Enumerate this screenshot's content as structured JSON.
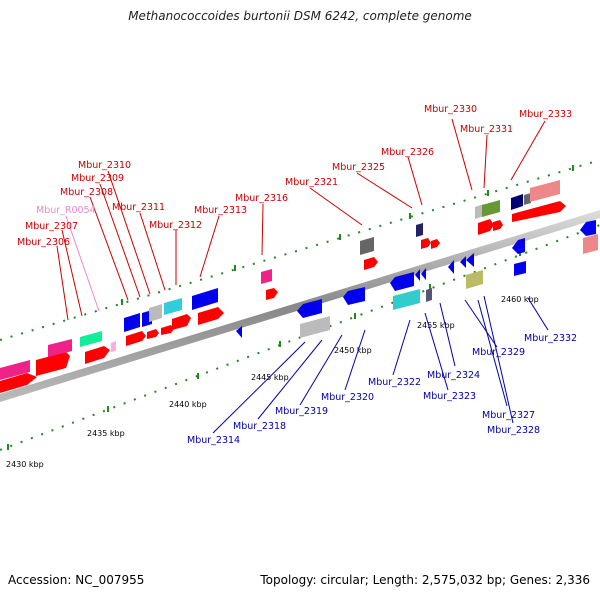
{
  "title": "Methanococcoides burtonii DSM 6242, complete genome",
  "footer": {
    "accession": "Accession: NC_007955",
    "summary": "Topology: circular; Length: 2,575,032 bp; Genes: 2,336"
  },
  "colors": {
    "forward_label": "#cc0000",
    "reverse_label": "#0000aa",
    "rna_label": "#ee88cc",
    "backbone": "#999999",
    "tick": "#228822"
  },
  "scale_labels": [
    "2430 kbp",
    "2435 kbp",
    "2440 kbp",
    "2445 kbp",
    "2450 kbp",
    "2455 kbp",
    "2460 kbp"
  ],
  "forward_labels": [
    "Mbur_2306",
    "Mbur_2307",
    "Mbur_R0054",
    "Mbur_2308",
    "Mbur_2309",
    "Mbur_2310",
    "Mbur_2311",
    "Mbur_2312",
    "Mbur_2313",
    "Mbur_2316",
    "Mbur_2321",
    "Mbur_2325",
    "Mbur_2326",
    "Mbur_2330",
    "Mbur_2331",
    "Mbur_2333"
  ],
  "reverse_labels": [
    "Mbur_2314",
    "Mbur_2318",
    "Mbur_2319",
    "Mbur_2320",
    "Mbur_2322",
    "Mbur_2323",
    "Mbur_2324",
    "Mbur_2327",
    "Mbur_2328",
    "Mbur_2329",
    "Mbur_2332"
  ]
}
